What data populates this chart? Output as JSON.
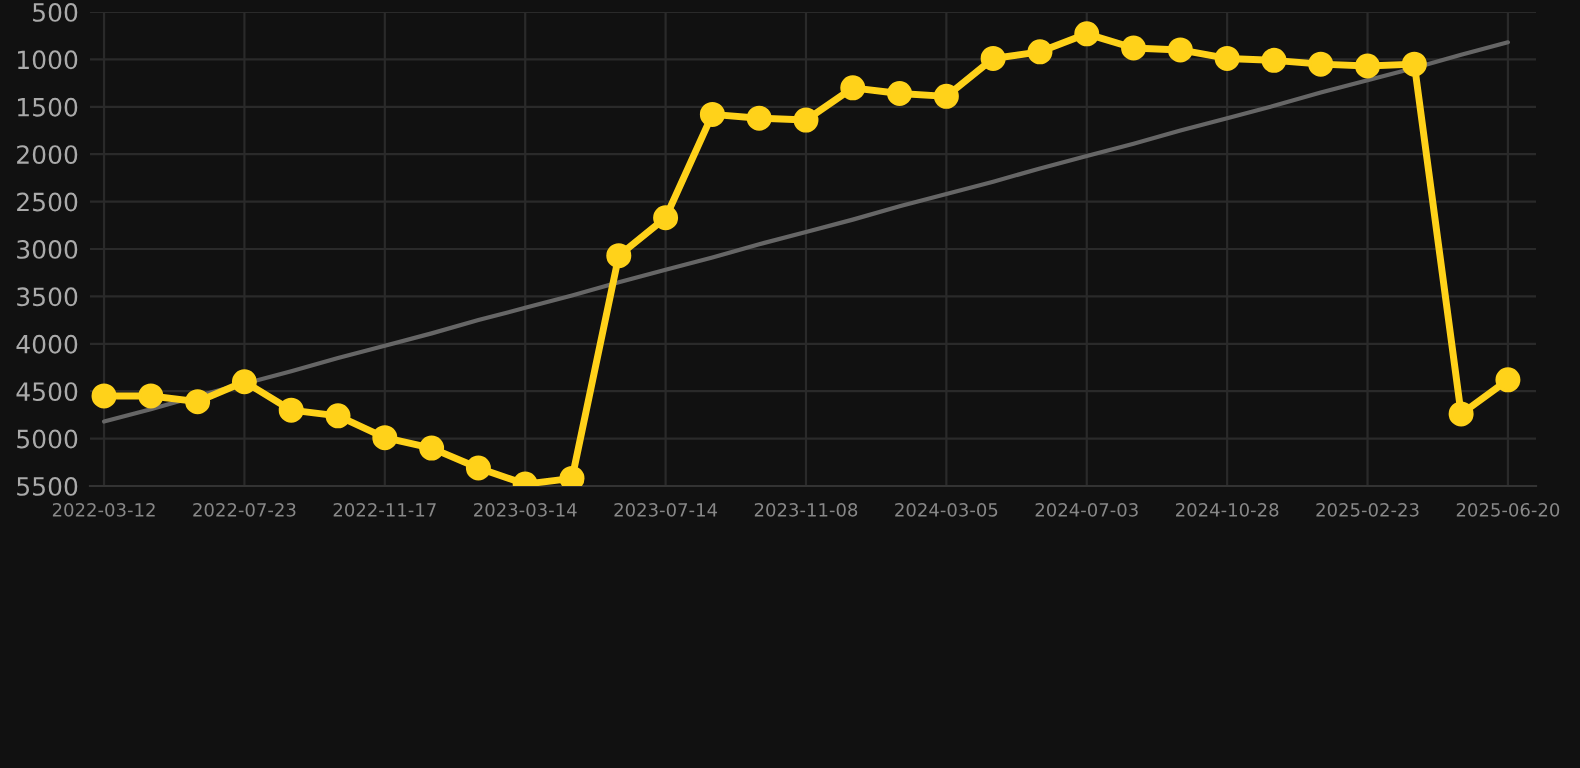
{
  "chart_data": {
    "type": "line",
    "categories": [
      "2022-03-12",
      null,
      null,
      "2022-07-23",
      null,
      null,
      "2022-11-17",
      null,
      null,
      "2023-03-14",
      null,
      null,
      "2023-07-14",
      null,
      null,
      "2023-11-08",
      null,
      null,
      "2024-03-05",
      null,
      null,
      "2024-07-03",
      null,
      null,
      "2024-10-28",
      null,
      null,
      "2025-02-23",
      null,
      null,
      "2025-06-20"
    ],
    "series": [
      {
        "color": "#ffd21a",
        "marker": "circle",
        "values": [
          4550,
          4550,
          4610,
          4400,
          4700,
          4760,
          4990,
          5100,
          5310,
          5480,
          5420,
          3070,
          2670,
          1580,
          1620,
          1640,
          1300,
          1360,
          1390,
          990,
          920,
          730,
          880,
          900,
          990,
          1010,
          1050,
          1070,
          1050,
          4740,
          4380
        ]
      },
      {
        "type": "line",
        "color": "#666666",
        "marker": "none",
        "values": [
          4820,
          4690,
          4550,
          4420,
          4290,
          4150,
          4020,
          3890,
          3750,
          3620,
          3490,
          3350,
          3220,
          3090,
          2950,
          2820,
          2690,
          2550,
          2420,
          2290,
          2150,
          2020,
          1890,
          1750,
          1620,
          1490,
          1350,
          1220,
          1090,
          950,
          820
        ]
      }
    ],
    "ylim": [
      5500,
      500
    ],
    "yticks": [
      500,
      1000,
      1500,
      2000,
      2500,
      3000,
      3500,
      4000,
      4500,
      5000,
      5500
    ],
    "grid": true
  }
}
